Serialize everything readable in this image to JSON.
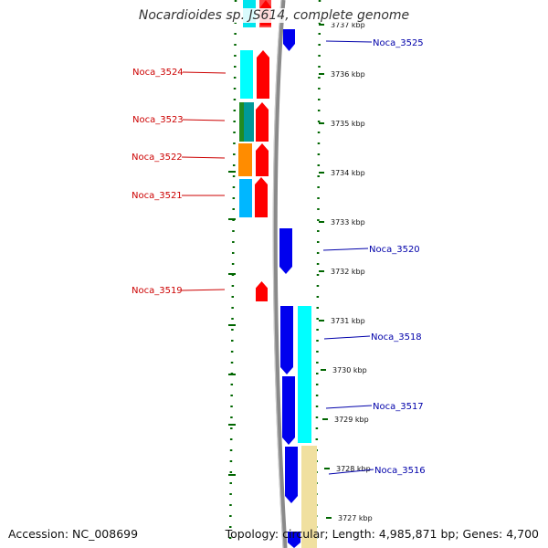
{
  "title": "Nocardioides sp. JS614, complete genome",
  "footer": {
    "accession": "Accession: NC_008699",
    "topology": "Topology: circular; Length: 4,985,871 bp; Genes: 4,700"
  },
  "colors": {
    "left_label": "#cc0000",
    "right_label": "#0000aa",
    "forward_arrow": "#ff0000",
    "reverse_arrow": "#0000ee",
    "dotted_guides": "#006600",
    "backbone": "#777777"
  },
  "ruler_labels": [
    "3737 kbp",
    "3736 kbp",
    "3735 kbp",
    "3734 kbp",
    "3733 kbp",
    "3732 kbp",
    "3731 kbp",
    "3730 kbp",
    "3729 kbp",
    "3728 kbp",
    "3727 kbp"
  ],
  "genes_left": [
    "Noca_3524",
    "Noca_3523",
    "Noca_3522",
    "Noca_3521",
    "Noca_3519"
  ],
  "genes_right": [
    "Noca_3525",
    "Noca_3520",
    "Noca_3518",
    "Noca_3517",
    "Noca_3516"
  ]
}
